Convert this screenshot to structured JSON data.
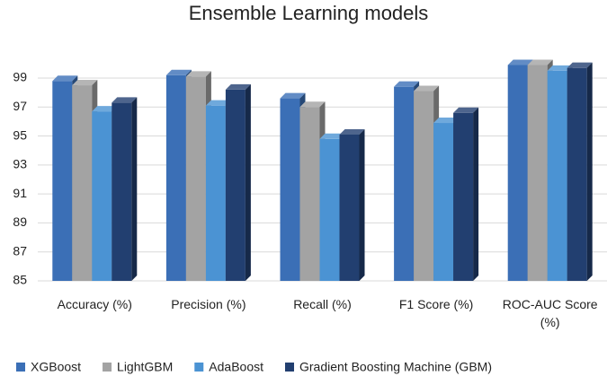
{
  "chart_data": {
    "type": "bar3d",
    "title": "Ensemble Learning models",
    "categories": [
      "Accuracy (%)",
      "Precision (%)",
      "Recall (%)",
      "F1 Score (%)",
      "ROC-AUC Score (%)"
    ],
    "series": [
      {
        "name": "XGBoost",
        "color": "#3b6fb6",
        "values": [
          98.8,
          99.2,
          97.6,
          98.4,
          99.9
        ]
      },
      {
        "name": "LightGBM",
        "color": "#a3a3a3",
        "values": [
          98.5,
          99.1,
          97.0,
          98.1,
          99.9
        ]
      },
      {
        "name": "AdaBoost",
        "color": "#4b93d3",
        "values": [
          96.7,
          97.1,
          94.8,
          95.9,
          99.5
        ]
      },
      {
        "name": "Gradient Boosting Machine (GBM)",
        "color": "#223f70",
        "values": [
          97.3,
          98.2,
          95.1,
          96.6,
          99.7
        ]
      }
    ],
    "ylim": [
      85,
      100.3
    ],
    "yticks": [
      85,
      87,
      89,
      91,
      93,
      95,
      97,
      99
    ],
    "grid": true,
    "legend": "bottom"
  }
}
